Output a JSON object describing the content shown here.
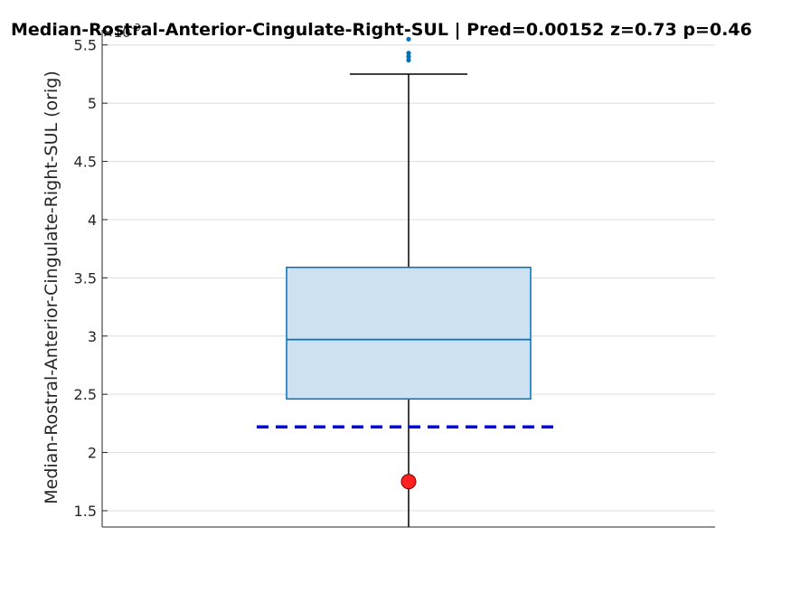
{
  "chart_data": {
    "type": "box",
    "title": "Median-Rostral-Anterior-Cingulate-Right-SUL  |  Pred=0.00152  z=0.73  p=0.46",
    "xlabel": "",
    "ylabel": "Median-Rostral-Anterior-Cingulate-Right-SUL (orig)",
    "y_exponent_base": "×10",
    "y_exponent_power": "-3",
    "ylim": [
      1.36,
      5.63
    ],
    "yticks": [
      1.5,
      2,
      2.5,
      3,
      3.5,
      4,
      4.5,
      5,
      5.5
    ],
    "ytick_labels": [
      "1.5",
      "2",
      "2.5",
      "3",
      "3.5",
      "4",
      "4.5",
      "5",
      "5.5"
    ],
    "grid": true,
    "box": {
      "whisker_low": 1.36,
      "q1": 2.46,
      "median": 2.97,
      "q3": 3.59,
      "whisker_high": 5.25,
      "outliers": [
        5.37,
        5.4,
        5.43,
        5.55
      ]
    },
    "reference_line": {
      "value": 2.22,
      "style": "dashed",
      "color": "#0000ee"
    },
    "highlight_point": {
      "value": 1.75,
      "color": "#ff2020"
    },
    "colors": {
      "box_edge": "#0072bd",
      "box_fill": "#cde1f1",
      "outlier": "#0072bd",
      "whisker": "#000000",
      "grid": "#dedede"
    }
  }
}
